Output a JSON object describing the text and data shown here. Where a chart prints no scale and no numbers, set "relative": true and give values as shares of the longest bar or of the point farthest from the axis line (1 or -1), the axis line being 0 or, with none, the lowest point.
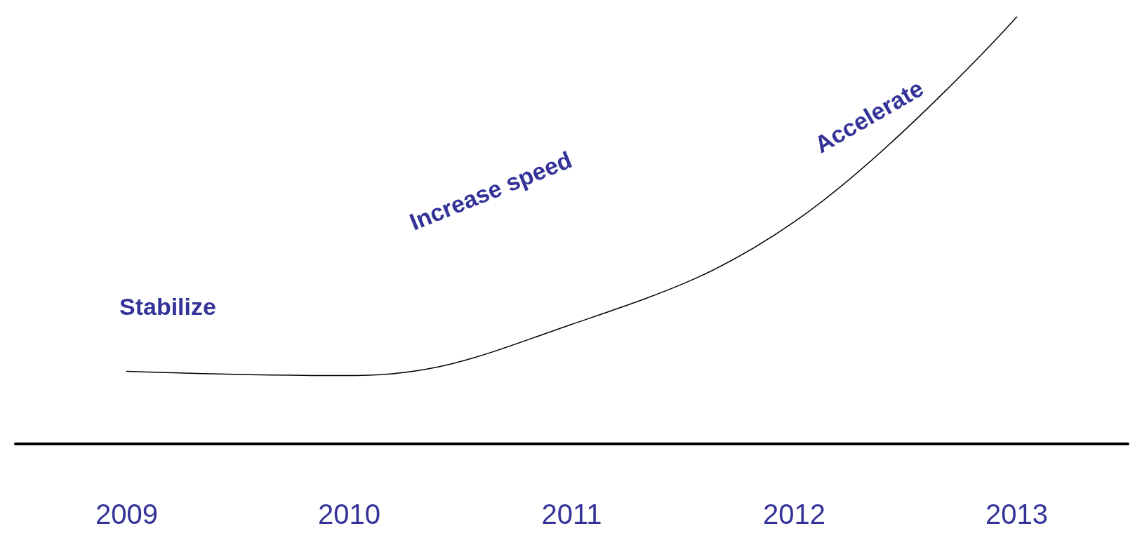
{
  "chart_data": {
    "type": "line",
    "relative": true,
    "categories": [
      "2009",
      "2010",
      "2011",
      "2012",
      "2013"
    ],
    "series": [
      {
        "color": "#000000",
        "values": [
          0.17,
          0.16,
          0.28,
          0.52,
          1
        ]
      }
    ],
    "annotations": [
      "Stabilize",
      "Increase speed",
      "Accelerate"
    ],
    "marker": "none",
    "grid": false
  }
}
